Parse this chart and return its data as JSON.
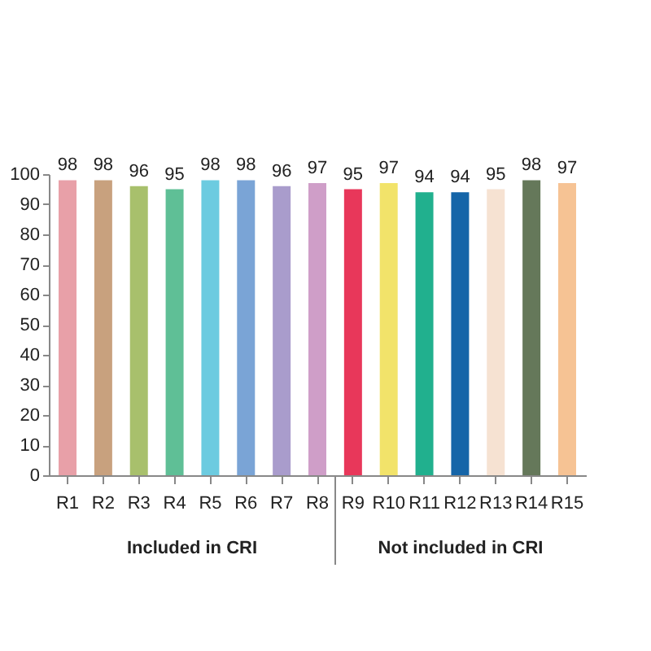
{
  "chart_data": {
    "type": "bar",
    "categories": [
      "R1",
      "R2",
      "R3",
      "R4",
      "R5",
      "R6",
      "R7",
      "R8",
      "R9",
      "R10",
      "R11",
      "R12",
      "R13",
      "R14",
      "R15"
    ],
    "values": [
      98,
      98,
      96,
      95,
      98,
      98,
      96,
      97,
      95,
      97,
      94,
      94,
      95,
      98,
      97
    ],
    "colors": [
      "#e8a0a8",
      "#c8a17e",
      "#a8c06c",
      "#5fbf96",
      "#6ccbe0",
      "#7aa4d6",
      "#a99ccc",
      "#cf9ec8",
      "#e8375a",
      "#f2e36a",
      "#21b08e",
      "#1565a8",
      "#f6e2d2",
      "#65785a",
      "#f6c394"
    ],
    "ylim": [
      0,
      100
    ],
    "yticks": [
      0,
      10,
      20,
      30,
      40,
      50,
      60,
      70,
      80,
      90,
      100
    ],
    "grid": false,
    "data_labels": true,
    "annotations": [
      "Included in CRI",
      "Not included in CRI"
    ]
  }
}
